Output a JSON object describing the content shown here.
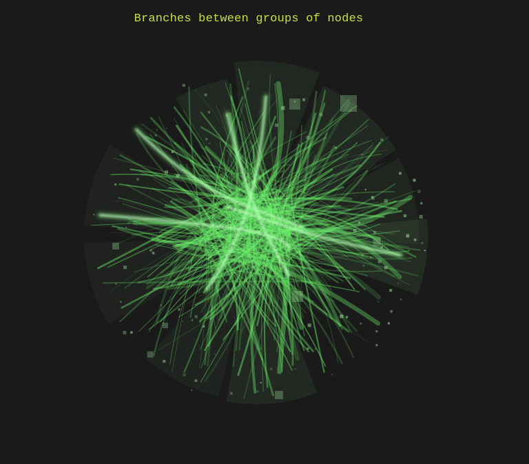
{
  "title": "Branches between groups of nodes",
  "colors": {
    "background": "#1a1a1a",
    "title": "#c2e04a",
    "edge": "#6cf06c",
    "edge_bright": "#c8ffc8",
    "wedge": "#6fae6f",
    "node": "#8fcf8f"
  },
  "chart_data": {
    "type": "chord-bundle",
    "title": "Branches between groups of nodes"
  }
}
